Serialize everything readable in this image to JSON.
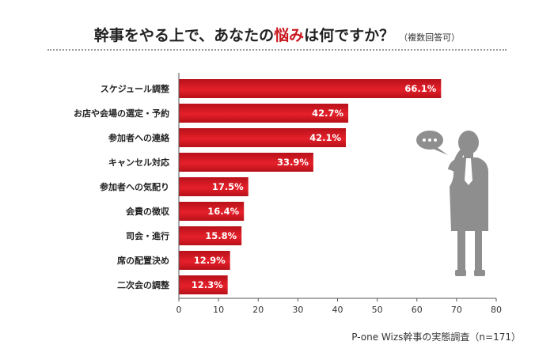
{
  "title": {
    "before": "幹事をやる上で、あなたの",
    "highlight": "悩み",
    "after": "は何ですか？",
    "note": "（複数回答可）"
  },
  "source": "P-one Wizs幹事の実態調査（n=171）",
  "colors": {
    "bar_dark": "#b8111a",
    "bar_light": "#e5202a",
    "accent": "#c8161d",
    "figure": "#8e8e8e"
  },
  "figure": {
    "icon": "person-on-phone-silhouette",
    "bubble_icon": "speech-bubble"
  },
  "chart_data": {
    "type": "bar",
    "orientation": "horizontal",
    "categories": [
      "スケジュール調整",
      "お店や会場の選定・予約",
      "参加者への連絡",
      "キャンセル対応",
      "参加者への気配り",
      "会費の徴収",
      "司会・進行",
      "席の配置決め",
      "二次会の調整"
    ],
    "values": [
      66.1,
      42.7,
      42.1,
      33.9,
      17.5,
      16.4,
      15.8,
      12.9,
      12.3
    ],
    "value_labels": [
      "66.1%",
      "42.7%",
      "42.1%",
      "33.9%",
      "17.5%",
      "16.4%",
      "15.8%",
      "12.9%",
      "12.3%"
    ],
    "xlim": [
      0,
      80
    ],
    "xticks": [
      0,
      10,
      20,
      30,
      40,
      50,
      60,
      70,
      80
    ],
    "grid": false
  }
}
